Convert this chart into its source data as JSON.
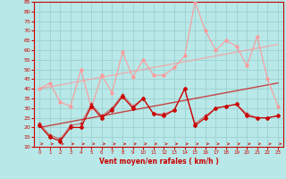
{
  "x": [
    0,
    1,
    2,
    3,
    4,
    5,
    6,
    7,
    8,
    9,
    10,
    11,
    12,
    13,
    14,
    15,
    16,
    17,
    18,
    19,
    20,
    21,
    22,
    23
  ],
  "line_mean": [
    21,
    15,
    13,
    20,
    20,
    31,
    25,
    29,
    36,
    30,
    35,
    27,
    26,
    29,
    40,
    21,
    25,
    30,
    31,
    32,
    26,
    25,
    25,
    26
  ],
  "line_mean2": [
    22,
    16,
    14,
    21,
    22,
    32,
    26,
    30,
    37,
    31,
    35,
    27,
    27,
    29,
    40,
    22,
    26,
    30,
    31,
    32,
    27,
    25,
    25,
    26
  ],
  "line_trend_low": [
    20,
    21,
    22,
    23,
    24,
    25,
    26,
    27,
    28,
    29,
    30,
    31,
    32,
    33,
    34,
    35,
    36,
    37,
    38,
    39,
    40,
    41,
    42,
    43
  ],
  "line_trend_high": [
    40,
    41,
    42,
    43,
    44,
    45,
    46,
    47,
    48,
    49,
    50,
    51,
    52,
    53,
    54,
    55,
    56,
    57,
    58,
    59,
    60,
    61,
    62,
    63
  ],
  "line_gusts": [
    40,
    43,
    33,
    31,
    50,
    30,
    47,
    38,
    59,
    46,
    55,
    47,
    47,
    51,
    57,
    85,
    70,
    60,
    65,
    62,
    52,
    67,
    45,
    31
  ],
  "bg_color": "#b8e8e8",
  "grid_color": "#99cccc",
  "color_dark": "#cc0000",
  "color_light": "#ff9999",
  "xlabel": "Vent moyen/en rafales ( km/h )",
  "ylim": [
    10,
    85
  ],
  "xlim": [
    -0.5,
    23.5
  ],
  "yticks": [
    10,
    15,
    20,
    25,
    30,
    35,
    40,
    45,
    50,
    55,
    60,
    65,
    70,
    75,
    80,
    85
  ],
  "xticks": [
    0,
    1,
    2,
    3,
    4,
    5,
    6,
    7,
    8,
    9,
    10,
    11,
    12,
    13,
    14,
    15,
    16,
    17,
    18,
    19,
    20,
    21,
    22,
    23
  ]
}
